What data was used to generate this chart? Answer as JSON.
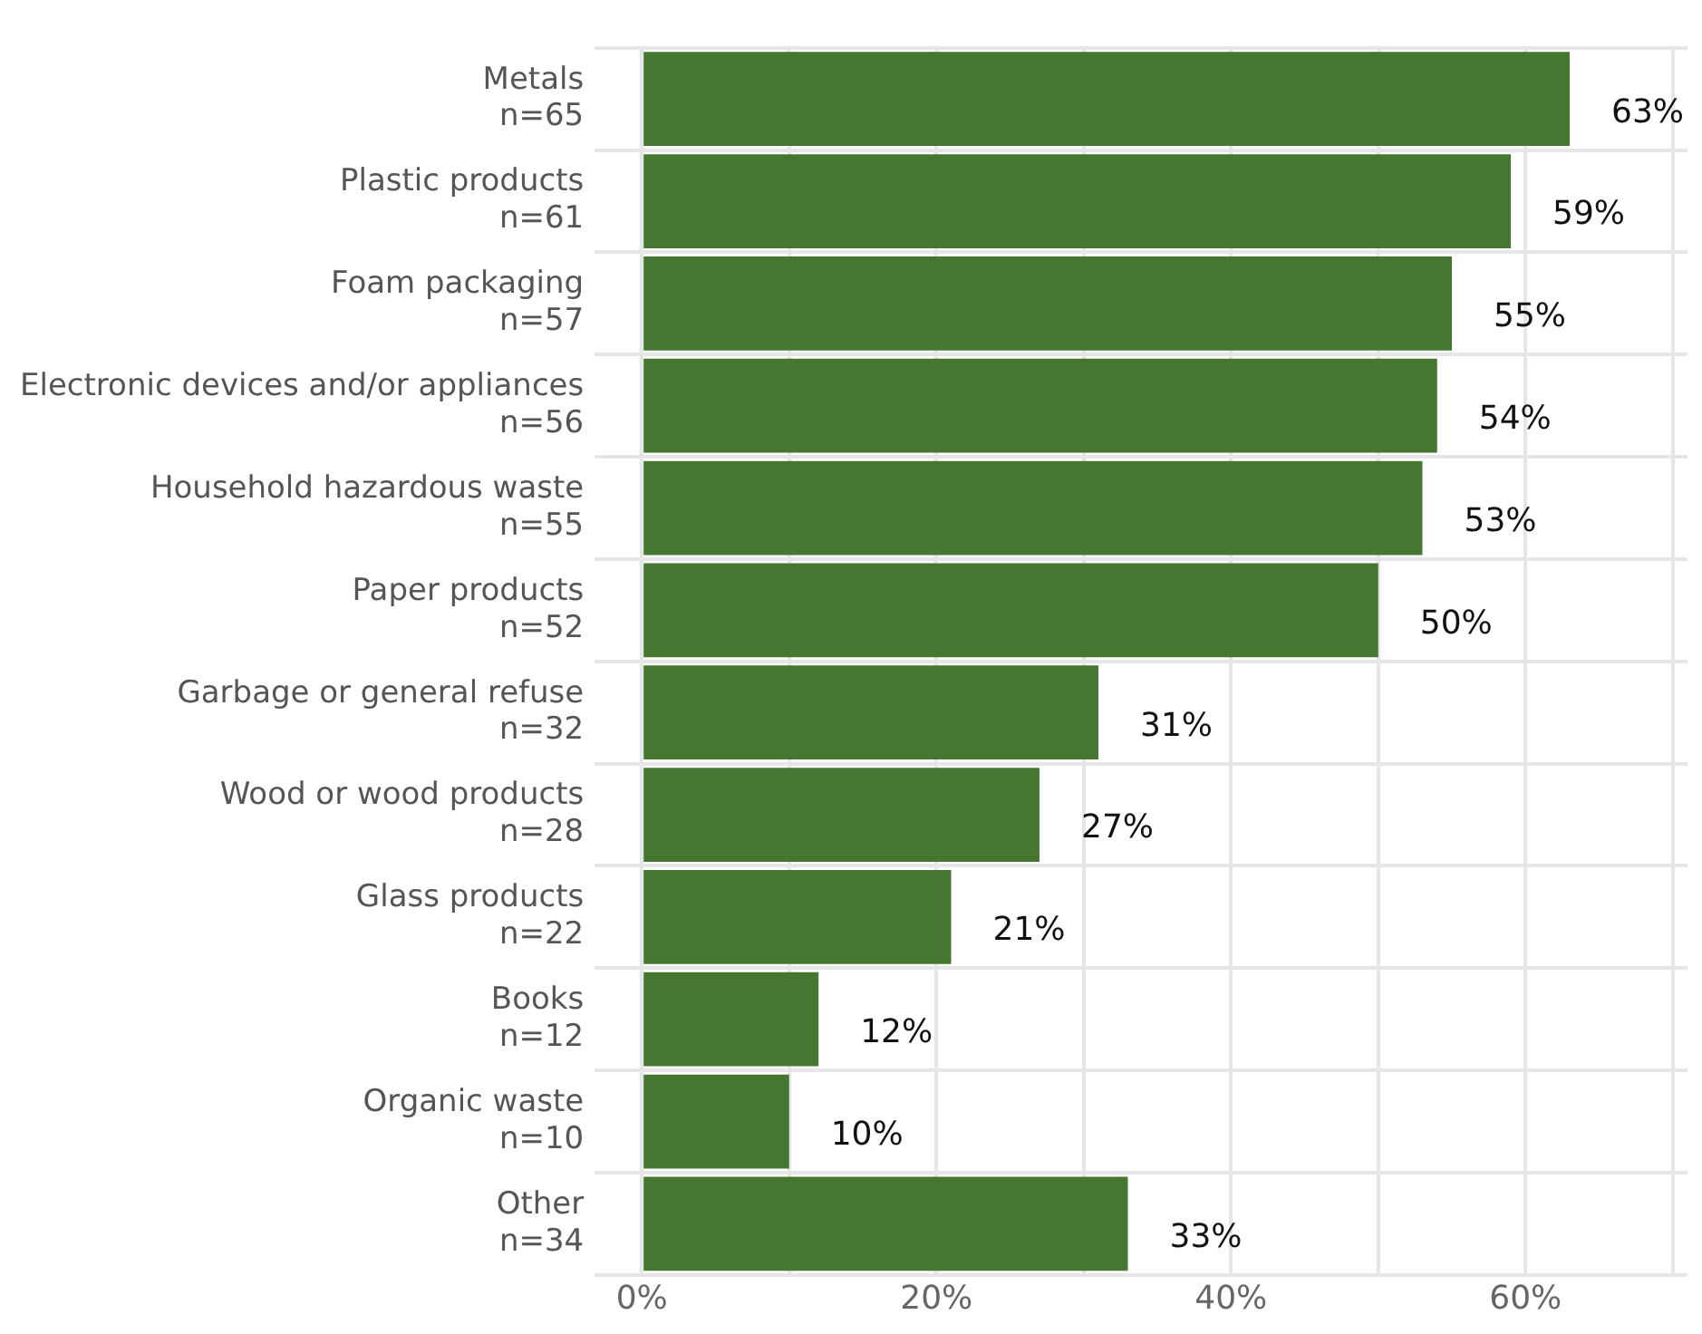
{
  "chart_data": {
    "type": "bar",
    "orientation": "horizontal",
    "categories": [
      "Metals\nn=65",
      "Plastic products\nn=61",
      "Foam packaging\nn=57",
      "Electronic devices and/or appliances\nn=56",
      "Household hazardous waste\nn=55",
      "Paper products\nn=52",
      "Garbage or general refuse\nn=32",
      "Wood or wood products\nn=28",
      "Glass products\nn=22",
      "Books\nn=12",
      "Organic waste\nn=10",
      "Other\nn=34"
    ],
    "values": [
      63,
      59,
      55,
      54,
      53,
      50,
      31,
      27,
      21,
      12,
      10,
      33
    ],
    "color": "#467731",
    "xlim": [
      0,
      71
    ],
    "xticks": [
      {
        "value": 0,
        "label": "0%"
      },
      {
        "value": 10,
        "label": null
      },
      {
        "value": 20,
        "label": "20%"
      },
      {
        "value": 30,
        "label": null
      },
      {
        "value": 40,
        "label": "40%"
      },
      {
        "value": 50,
        "label": null
      },
      {
        "value": 60,
        "label": "60%"
      },
      {
        "value": 70,
        "label": null
      }
    ],
    "value_labels": [
      "63%",
      "59%",
      "55%",
      "54%",
      "53%",
      "50%",
      "31%",
      "27%",
      "21%",
      "12%",
      "10%",
      "33%"
    ],
    "grid": true
  }
}
